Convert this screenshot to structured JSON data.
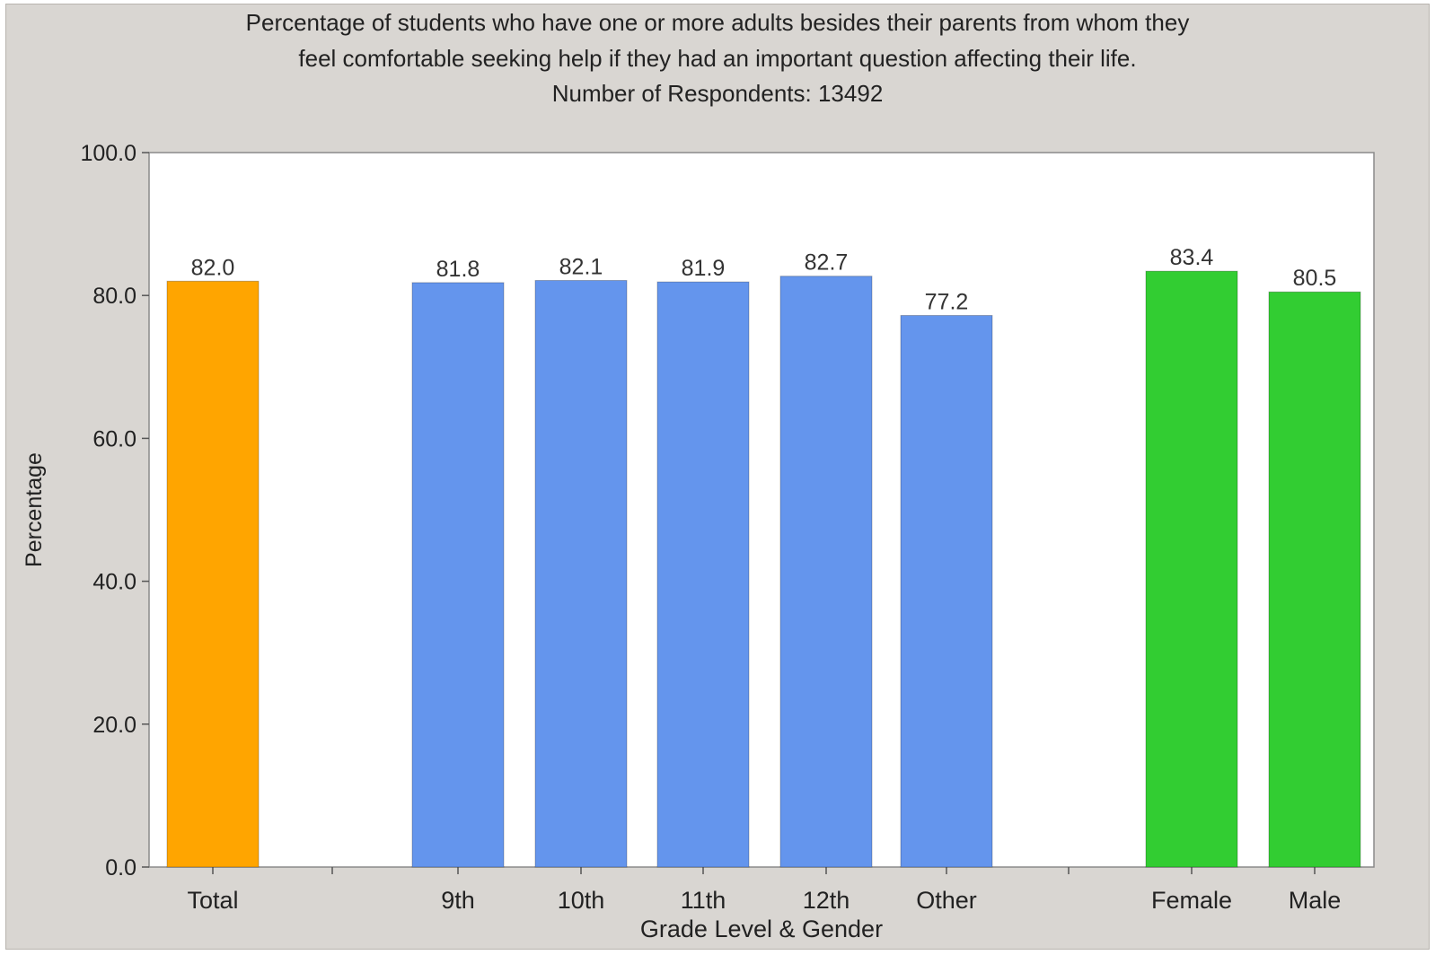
{
  "title_lines": [
    "Percentage of students who have one or more adults besides their parents from whom they",
    "feel comfortable seeking help if they had an important question affecting their life.",
    "Number of Respondents: 13492"
  ],
  "chart_data": {
    "type": "bar",
    "categories": [
      "Total",
      "9th",
      "10th",
      "11th",
      "12th",
      "Other",
      "Female",
      "Male"
    ],
    "values": [
      82.0,
      81.8,
      82.1,
      81.9,
      82.7,
      77.2,
      83.4,
      80.5
    ],
    "value_labels": [
      "82.0",
      "81.8",
      "82.1",
      "81.9",
      "82.7",
      "77.2",
      "83.4",
      "80.5"
    ],
    "groups": [
      "total",
      "grade",
      "grade",
      "grade",
      "grade",
      "grade",
      "gender",
      "gender"
    ],
    "group_colors": {
      "total": "#ffa500",
      "grade": "#6495ed",
      "gender": "#32cd32"
    },
    "xlabel": "Grade Level & Gender",
    "ylabel": "Percentage",
    "ylim": [
      0,
      100
    ],
    "yticks": [
      0,
      20,
      40,
      60,
      80,
      100
    ],
    "ytick_labels": [
      "0.0",
      "20.0",
      "40.0",
      "60.0",
      "80.0",
      "100.0"
    ],
    "grid": false,
    "legend": "none"
  }
}
